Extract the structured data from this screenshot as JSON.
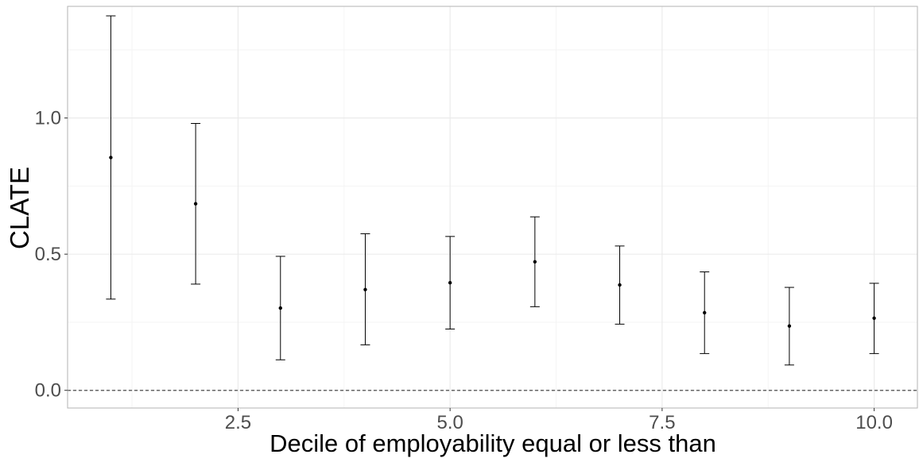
{
  "chart_data": {
    "type": "scatter",
    "title": "",
    "xlabel": "Decile of employability equal or less than",
    "ylabel": "CLATE",
    "xlim": [
      0.49,
      10.51
    ],
    "ylim": [
      -0.065,
      1.41
    ],
    "x_ticks": [
      2.5,
      5.0,
      7.5,
      10.0
    ],
    "x_tick_labels": [
      "2.5",
      "5.0",
      "7.5",
      "10.0"
    ],
    "y_ticks": [
      0.0,
      0.5,
      1.0
    ],
    "y_tick_labels": [
      "0.0",
      "0.5",
      "1.0"
    ],
    "grid": true,
    "reference_line": {
      "y": 0.0,
      "style": "dashed",
      "color": "#666666"
    },
    "points": [
      {
        "x": 1,
        "y": 0.855,
        "lower": 0.335,
        "upper": 1.375
      },
      {
        "x": 2,
        "y": 0.685,
        "lower": 0.39,
        "upper": 0.98
      },
      {
        "x": 3,
        "y": 0.302,
        "lower": 0.112,
        "upper": 0.492
      },
      {
        "x": 4,
        "y": 0.37,
        "lower": 0.167,
        "upper": 0.575
      },
      {
        "x": 5,
        "y": 0.395,
        "lower": 0.225,
        "upper": 0.565
      },
      {
        "x": 6,
        "y": 0.472,
        "lower": 0.307,
        "upper": 0.637
      },
      {
        "x": 7,
        "y": 0.387,
        "lower": 0.243,
        "upper": 0.53
      },
      {
        "x": 8,
        "y": 0.285,
        "lower": 0.135,
        "upper": 0.435
      },
      {
        "x": 9,
        "y": 0.236,
        "lower": 0.093,
        "upper": 0.378
      },
      {
        "x": 10,
        "y": 0.265,
        "lower": 0.135,
        "upper": 0.393
      }
    ],
    "colors": {
      "points": "#000000",
      "grid": "#ebebeb",
      "panel_border": "#b3b3b3"
    }
  }
}
